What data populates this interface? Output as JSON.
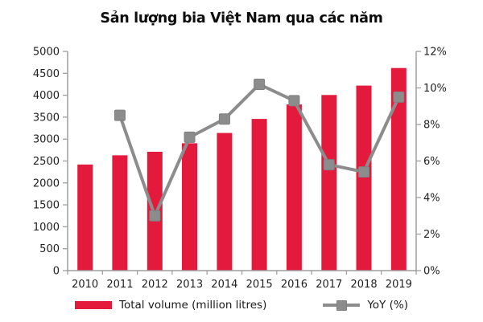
{
  "title": "Sản lượng bia Việt Nam qua các năm",
  "colors": {
    "bar": "#E41A3C",
    "line": "#8C8C8C",
    "marker": "#8C8C8C",
    "marker_edge": "#7F7F7F",
    "axis": "#9E9E9E",
    "text": "#1F1F1F",
    "background": "#FFFFFF"
  },
  "legend": {
    "items": [
      {
        "label": "Total volume (million litres)",
        "marker": "bar-swatch"
      },
      {
        "label": "YoY (%)",
        "marker": "line-square-swatch"
      }
    ]
  },
  "chart_data": {
    "type": "bar",
    "subtype": "combo-bar-line",
    "title": "Sản lượng bia Việt Nam qua các năm",
    "categories": [
      "2010",
      "2011",
      "2012",
      "2013",
      "2014",
      "2015",
      "2016",
      "2017",
      "2018",
      "2019"
    ],
    "series": [
      {
        "name": "Total volume (million litres)",
        "chart_type": "bar",
        "axis": "left",
        "color": "#E41A3C",
        "values": [
          2420,
          2630,
          2710,
          2905,
          3140,
          3460,
          3790,
          4005,
          4220,
          4620
        ]
      },
      {
        "name": "YoY (%)",
        "chart_type": "line",
        "axis": "right",
        "color": "#8C8C8C",
        "values": [
          null,
          8.5,
          3.0,
          7.3,
          8.3,
          10.2,
          9.3,
          5.8,
          5.4,
          9.5
        ]
      }
    ],
    "left_axis": {
      "min": 0,
      "max": 5000,
      "step": 500,
      "tick_labels": [
        "0",
        "500",
        "1000",
        "1500",
        "2000",
        "2500",
        "3000",
        "3500",
        "4000",
        "4500",
        "5000"
      ]
    },
    "right_axis": {
      "min": 0,
      "max": 12,
      "step": 2,
      "tick_labels": [
        "0%",
        "2%",
        "4%",
        "6%",
        "8%",
        "10%",
        "12%"
      ]
    },
    "grid": false,
    "legend_position": "bottom"
  }
}
